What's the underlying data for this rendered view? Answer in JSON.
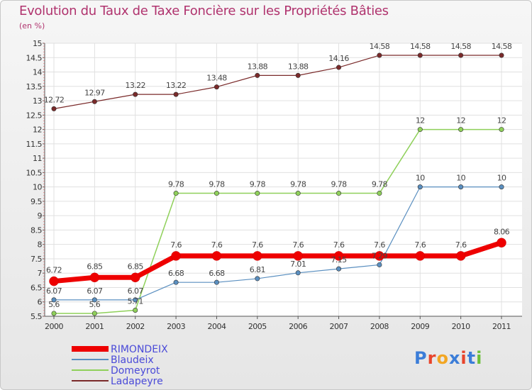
{
  "chart_data": {
    "type": "line",
    "title": "Evolution du Taux de Taxe Foncière sur les Propriétés Bâties",
    "subtitle": "(en %)",
    "x": [
      "2000",
      "2001",
      "2002",
      "2003",
      "2004",
      "2005",
      "2006",
      "2007",
      "2008",
      "2009",
      "2010",
      "2011"
    ],
    "ylim": [
      5.5,
      15
    ],
    "yticks": [
      "5.5",
      "6",
      "6.5",
      "7",
      "7.5",
      "8",
      "8.5",
      "9",
      "9.5",
      "10",
      "10.5",
      "11",
      "11.5",
      "12",
      "12.5",
      "13",
      "13.5",
      "14",
      "14.5",
      "15"
    ],
    "grid": true,
    "legend_position": "bottom-left",
    "series": [
      {
        "name": "RIMONDEIX",
        "color": "#ee0000",
        "values": [
          6.72,
          6.85,
          6.85,
          7.6,
          7.6,
          7.6,
          7.6,
          7.6,
          7.6,
          7.6,
          7.6,
          8.06
        ],
        "labels": [
          "6.72",
          "6.85",
          "6.85",
          "7.6",
          "7.6",
          "7.6",
          "7.6",
          "7.6",
          "7.6",
          "7.6",
          "7.6",
          "8.06"
        ]
      },
      {
        "name": "Blaudeix",
        "color": "#5a8fc0",
        "values": [
          6.07,
          6.07,
          6.07,
          6.68,
          6.68,
          6.81,
          7.01,
          7.15,
          7.29,
          10,
          10,
          10
        ],
        "labels": [
          "6.07",
          "6.07",
          "6.07",
          "6.68",
          "6.68",
          "6.81",
          "7.01",
          "7.15",
          "7.29",
          "10",
          "10",
          "10"
        ]
      },
      {
        "name": "Domeyrot",
        "color": "#8fd05a",
        "values": [
          5.6,
          5.6,
          5.71,
          9.78,
          9.78,
          9.78,
          9.78,
          9.78,
          9.78,
          12,
          12,
          12
        ],
        "labels": [
          "5.6",
          "5.6",
          "5.71",
          "9.78",
          "9.78",
          "9.78",
          "9.78",
          "9.78",
          "9.78",
          "12",
          "12",
          "12"
        ]
      },
      {
        "name": "Ladapeyre",
        "color": "#7a2a2a",
        "values": [
          12.72,
          12.97,
          13.22,
          13.22,
          13.48,
          13.88,
          13.88,
          14.16,
          14.58,
          14.58,
          14.58,
          14.58
        ],
        "labels": [
          "12.72",
          "12.97",
          "13.22",
          "13.22",
          "13.48",
          "13.88",
          "13.88",
          "14.16",
          "14.58",
          "14.58",
          "14.58",
          "14.58"
        ]
      }
    ]
  },
  "logo": {
    "text": "Proxiti",
    "colors": [
      "#3b7dd8",
      "#e8442b",
      "#f2a623",
      "#3b7dd8",
      "#e8442b",
      "#3b7dd8",
      "#6cbf3a"
    ]
  }
}
